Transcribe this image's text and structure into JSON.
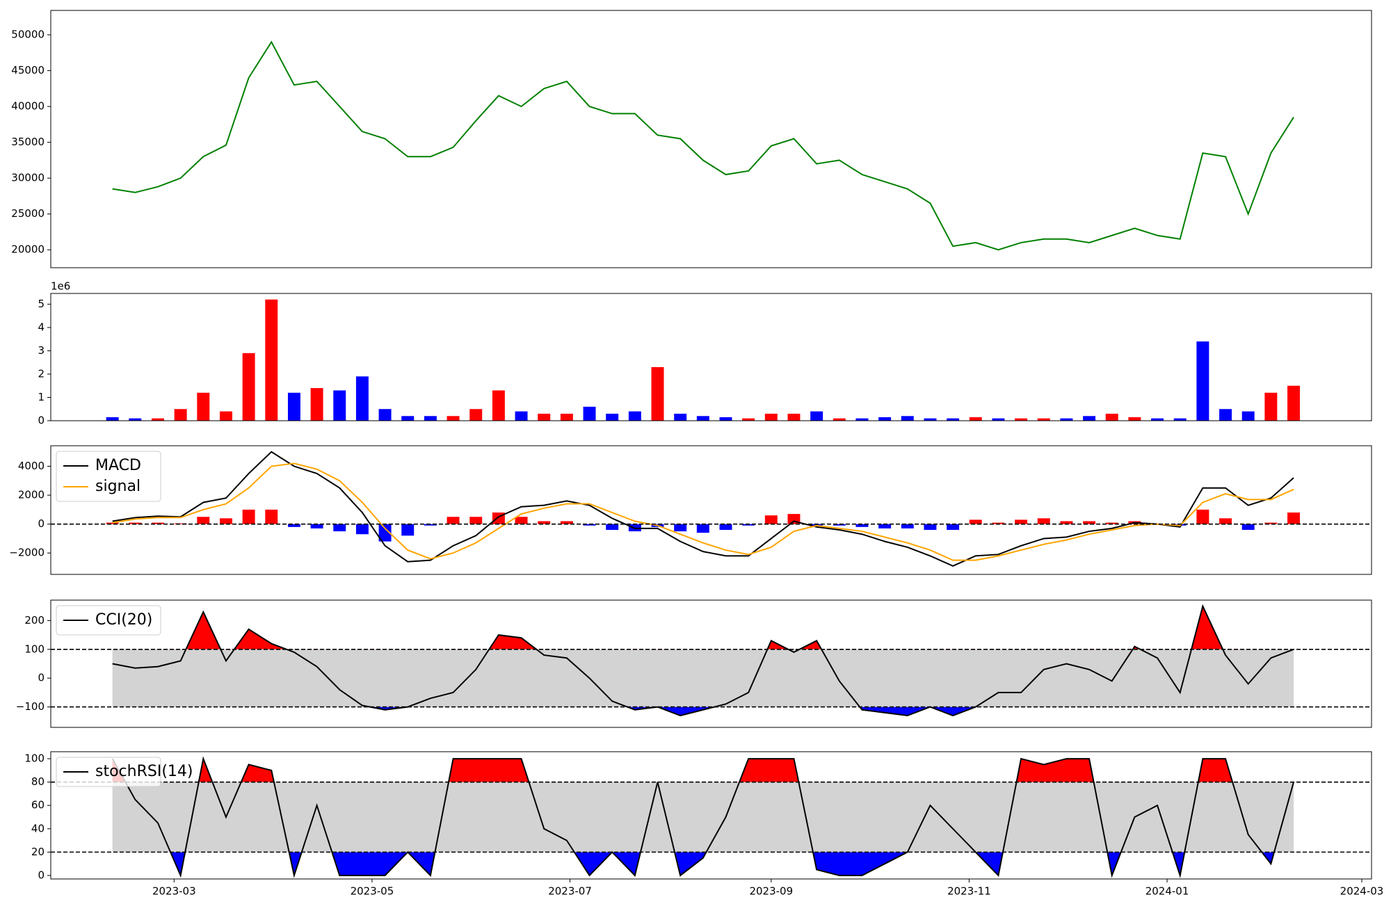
{
  "chart_data": [
    {
      "type": "line",
      "legend": false,
      "x": [
        "2023-02-10",
        "2023-02-17",
        "2023-02-24",
        "2023-03-03",
        "2023-03-10",
        "2023-03-17",
        "2023-03-24",
        "2023-03-31",
        "2023-04-07",
        "2023-04-14",
        "2023-04-21",
        "2023-04-28",
        "2023-05-05",
        "2023-05-12",
        "2023-05-19",
        "2023-05-26",
        "2023-06-02",
        "2023-06-09",
        "2023-06-16",
        "2023-06-23",
        "2023-06-30",
        "2023-07-07",
        "2023-07-14",
        "2023-07-21",
        "2023-07-28",
        "2023-08-04",
        "2023-08-11",
        "2023-08-18",
        "2023-08-25",
        "2023-09-01",
        "2023-09-08",
        "2023-09-15",
        "2023-09-22",
        "2023-09-29",
        "2023-10-06",
        "2023-10-13",
        "2023-10-20",
        "2023-10-27",
        "2023-11-03",
        "2023-11-10",
        "2023-11-17",
        "2023-11-24",
        "2023-12-01",
        "2023-12-08",
        "2023-12-15",
        "2023-12-22",
        "2023-12-29",
        "2024-01-05",
        "2024-01-12",
        "2024-01-19",
        "2024-01-26",
        "2024-02-02",
        "2024-02-09"
      ],
      "series": [
        {
          "color": "#008000",
          "values": [
            28500,
            28000,
            28800,
            30000,
            33000,
            34600,
            44000,
            49000,
            43000,
            43500,
            40000,
            36500,
            35500,
            33000,
            33000,
            34300,
            38000,
            41500,
            40000,
            42500,
            43500,
            40000,
            39000,
            39000,
            36000,
            35500,
            32500,
            30500,
            31000,
            34500,
            35500,
            32000,
            32500,
            30500,
            29500,
            28500,
            26500,
            20500,
            21000,
            20000,
            21000,
            21500,
            21500,
            21000,
            22000,
            23000,
            22000,
            21500,
            33500,
            33000,
            25000,
            33500,
            38500
          ]
        }
      ],
      "xlim": [
        "2023-01-22",
        "2024-03-04"
      ],
      "ylim": [
        17500,
        53400
      ],
      "yticks": [
        20000,
        25000,
        30000,
        35000,
        40000,
        45000,
        50000
      ]
    },
    {
      "type": "bar",
      "offset_label": "1e6",
      "x": [
        "2023-02-10",
        "2023-02-17",
        "2023-02-24",
        "2023-03-03",
        "2023-03-10",
        "2023-03-17",
        "2023-03-24",
        "2023-03-31",
        "2023-04-07",
        "2023-04-14",
        "2023-04-21",
        "2023-04-28",
        "2023-05-05",
        "2023-05-12",
        "2023-05-19",
        "2023-05-26",
        "2023-06-02",
        "2023-06-09",
        "2023-06-16",
        "2023-06-23",
        "2023-06-30",
        "2023-07-07",
        "2023-07-14",
        "2023-07-21",
        "2023-07-28",
        "2023-08-04",
        "2023-08-11",
        "2023-08-18",
        "2023-08-25",
        "2023-09-01",
        "2023-09-08",
        "2023-09-15",
        "2023-09-22",
        "2023-09-29",
        "2023-10-06",
        "2023-10-13",
        "2023-10-20",
        "2023-10-27",
        "2023-11-03",
        "2023-11-10",
        "2023-11-17",
        "2023-11-24",
        "2023-12-01",
        "2023-12-08",
        "2023-12-15",
        "2023-12-22",
        "2023-12-29",
        "2024-01-05",
        "2024-01-12",
        "2024-01-19",
        "2024-01-26",
        "2024-02-02",
        "2024-02-09"
      ],
      "values": [
        0.15,
        0.1,
        0.1,
        0.5,
        1.2,
        0.4,
        2.9,
        5.2,
        1.2,
        1.4,
        1.3,
        1.9,
        0.5,
        0.2,
        0.2,
        0.2,
        0.5,
        1.3,
        0.4,
        0.3,
        0.3,
        0.6,
        0.3,
        0.4,
        2.3,
        0.3,
        0.2,
        0.15,
        0.1,
        0.3,
        0.3,
        0.4,
        0.1,
        0.1,
        0.15,
        0.2,
        0.1,
        0.1,
        0.15,
        0.1,
        0.1,
        0.1,
        0.1,
        0.2,
        0.3,
        0.15,
        0.1,
        0.1,
        3.4,
        0.5,
        0.4,
        1.2,
        1.5
      ],
      "colors": [
        "#0000ff",
        "#0000ff",
        "#ff0000",
        "#ff0000",
        "#ff0000",
        "#ff0000",
        "#ff0000",
        "#ff0000",
        "#0000ff",
        "#ff0000",
        "#0000ff",
        "#0000ff",
        "#0000ff",
        "#0000ff",
        "#0000ff",
        "#ff0000",
        "#ff0000",
        "#ff0000",
        "#0000ff",
        "#ff0000",
        "#ff0000",
        "#0000ff",
        "#0000ff",
        "#0000ff",
        "#ff0000",
        "#0000ff",
        "#0000ff",
        "#0000ff",
        "#ff0000",
        "#ff0000",
        "#ff0000",
        "#0000ff",
        "#ff0000",
        "#0000ff",
        "#0000ff",
        "#0000ff",
        "#0000ff",
        "#0000ff",
        "#ff0000",
        "#0000ff",
        "#ff0000",
        "#ff0000",
        "#0000ff",
        "#0000ff",
        "#ff0000",
        "#ff0000",
        "#0000ff",
        "#0000ff",
        "#0000ff",
        "#0000ff",
        "#0000ff",
        "#ff0000",
        "#ff0000"
      ],
      "xlim": [
        "2023-01-22",
        "2024-03-04"
      ],
      "ylim": [
        0,
        5.46
      ],
      "yticks": [
        0,
        1,
        2,
        3,
        4,
        5
      ]
    },
    {
      "type": "macd",
      "legend": "upper left",
      "zero_line": 0,
      "x": [
        "2023-02-10",
        "2023-02-17",
        "2023-02-24",
        "2023-03-03",
        "2023-03-10",
        "2023-03-17",
        "2023-03-24",
        "2023-03-31",
        "2023-04-07",
        "2023-04-14",
        "2023-04-21",
        "2023-04-28",
        "2023-05-05",
        "2023-05-12",
        "2023-05-19",
        "2023-05-26",
        "2023-06-02",
        "2023-06-09",
        "2023-06-16",
        "2023-06-23",
        "2023-06-30",
        "2023-07-07",
        "2023-07-14",
        "2023-07-21",
        "2023-07-28",
        "2023-08-04",
        "2023-08-11",
        "2023-08-18",
        "2023-08-25",
        "2023-09-01",
        "2023-09-08",
        "2023-09-15",
        "2023-09-22",
        "2023-09-29",
        "2023-10-06",
        "2023-10-13",
        "2023-10-20",
        "2023-10-27",
        "2023-11-03",
        "2023-11-10",
        "2023-11-17",
        "2023-11-24",
        "2023-12-01",
        "2023-12-08",
        "2023-12-15",
        "2023-12-22",
        "2023-12-29",
        "2024-01-05",
        "2024-01-12",
        "2024-01-19",
        "2024-01-26",
        "2024-02-02",
        "2024-02-09"
      ],
      "series": [
        {
          "name": "MACD",
          "color": "#000000",
          "values": [
            200,
            450,
            550,
            500,
            1500,
            1800,
            3500,
            5000,
            4000,
            3500,
            2500,
            800,
            -1500,
            -2600,
            -2500,
            -1500,
            -800,
            500,
            1200,
            1300,
            1600,
            1300,
            400,
            -300,
            -300,
            -1200,
            -1900,
            -2200,
            -2200,
            -1000,
            200,
            -200,
            -400,
            -700,
            -1200,
            -1600,
            -2200,
            -2900,
            -2200,
            -2100,
            -1500,
            -1000,
            -900,
            -500,
            -300,
            100,
            0,
            -200,
            2500,
            2500,
            1300,
            1800,
            3200
          ]
        },
        {
          "name": "signal",
          "color": "#ffa500",
          "values": [
            100,
            350,
            450,
            450,
            1000,
            1400,
            2500,
            4000,
            4200,
            3800,
            3000,
            1500,
            -300,
            -1800,
            -2400,
            -2000,
            -1300,
            -300,
            700,
            1100,
            1400,
            1400,
            800,
            200,
            -100,
            -700,
            -1300,
            -1800,
            -2100,
            -1600,
            -500,
            -100,
            -300,
            -500,
            -900,
            -1300,
            -1800,
            -2500,
            -2500,
            -2200,
            -1800,
            -1400,
            -1100,
            -700,
            -400,
            -100,
            0,
            -100,
            1500,
            2100,
            1700,
            1700,
            2400
          ]
        }
      ],
      "histogram": [
        100,
        100,
        100,
        50,
        500,
        400,
        1000,
        1000,
        -200,
        -300,
        -500,
        -700,
        -1200,
        -800,
        -100,
        500,
        500,
        800,
        500,
        200,
        200,
        -100,
        -400,
        -500,
        -200,
        -500,
        -600,
        -400,
        -100,
        600,
        700,
        -100,
        -100,
        -200,
        -300,
        -300,
        -400,
        -400,
        300,
        100,
        300,
        400,
        200,
        200,
        100,
        200,
        0,
        -100,
        1000,
        400,
        -400,
        100,
        800
      ],
      "positive_color": "#ff0000",
      "negative_color": "#0000ff",
      "xlim": [
        "2023-01-22",
        "2024-03-04"
      ],
      "ylim": [
        -3480,
        5420
      ],
      "yticks": [
        {
          "value": -2000,
          "label": "−2000"
        },
        0,
        2000,
        4000
      ]
    },
    {
      "type": "oscillator",
      "legend": "upper left",
      "thresholds": [
        -100,
        100
      ],
      "above_color": "#ff0000",
      "below_color": "#0000ff",
      "band_color": "#d3d3d3",
      "x": [
        "2023-02-10",
        "2023-02-17",
        "2023-02-24",
        "2023-03-03",
        "2023-03-10",
        "2023-03-17",
        "2023-03-24",
        "2023-03-31",
        "2023-04-07",
        "2023-04-14",
        "2023-04-21",
        "2023-04-28",
        "2023-05-05",
        "2023-05-12",
        "2023-05-19",
        "2023-05-26",
        "2023-06-02",
        "2023-06-09",
        "2023-06-16",
        "2023-06-23",
        "2023-06-30",
        "2023-07-07",
        "2023-07-14",
        "2023-07-21",
        "2023-07-28",
        "2023-08-04",
        "2023-08-11",
        "2023-08-18",
        "2023-08-25",
        "2023-09-01",
        "2023-09-08",
        "2023-09-15",
        "2023-09-22",
        "2023-09-29",
        "2023-10-06",
        "2023-10-13",
        "2023-10-20",
        "2023-10-27",
        "2023-11-03",
        "2023-11-10",
        "2023-11-17",
        "2023-11-24",
        "2023-12-01",
        "2023-12-08",
        "2023-12-15",
        "2023-12-22",
        "2023-12-29",
        "2024-01-05",
        "2024-01-12",
        "2024-01-19",
        "2024-01-26",
        "2024-02-02",
        "2024-02-09"
      ],
      "series": [
        {
          "name": "CCI(20)",
          "color": "#000000",
          "values": [
            50,
            35,
            40,
            60,
            230,
            60,
            170,
            120,
            90,
            40,
            -40,
            -95,
            -110,
            -100,
            -70,
            -50,
            30,
            150,
            140,
            80,
            70,
            0,
            -80,
            -110,
            -100,
            -130,
            -110,
            -90,
            -50,
            130,
            90,
            130,
            -10,
            -110,
            -120,
            -130,
            -100,
            -130,
            -100,
            -50,
            -50,
            30,
            50,
            30,
            -10,
            110,
            70,
            -50,
            250,
            80,
            -20,
            70,
            100
          ]
        }
      ],
      "xlim": [
        "2023-01-22",
        "2024-03-04"
      ],
      "ylim": [
        -171,
        271
      ],
      "yticks": [
        {
          "value": -100,
          "label": "−100"
        },
        0,
        100,
        200
      ]
    },
    {
      "type": "oscillator",
      "legend": "upper left",
      "thresholds": [
        20,
        80
      ],
      "above_color": "#ff0000",
      "below_color": "#0000ff",
      "band_color": "#d3d3d3",
      "x": [
        "2023-02-10",
        "2023-02-17",
        "2023-02-24",
        "2023-03-03",
        "2023-03-10",
        "2023-03-17",
        "2023-03-24",
        "2023-03-31",
        "2023-04-07",
        "2023-04-14",
        "2023-04-21",
        "2023-04-28",
        "2023-05-05",
        "2023-05-12",
        "2023-05-19",
        "2023-05-26",
        "2023-06-02",
        "2023-06-09",
        "2023-06-16",
        "2023-06-23",
        "2023-06-30",
        "2023-07-07",
        "2023-07-14",
        "2023-07-21",
        "2023-07-28",
        "2023-08-04",
        "2023-08-11",
        "2023-08-18",
        "2023-08-25",
        "2023-09-01",
        "2023-09-08",
        "2023-09-15",
        "2023-09-22",
        "2023-09-29",
        "2023-10-06",
        "2023-10-13",
        "2023-10-20",
        "2023-10-27",
        "2023-11-03",
        "2023-11-10",
        "2023-11-17",
        "2023-11-24",
        "2023-12-01",
        "2023-12-08",
        "2023-12-15",
        "2023-12-22",
        "2023-12-29",
        "2024-01-05",
        "2024-01-12",
        "2024-01-19",
        "2024-01-26",
        "2024-02-02",
        "2024-02-09"
      ],
      "series": [
        {
          "name": "stochRSI(14)",
          "color": "#000000",
          "values": [
            100,
            65,
            45,
            0,
            100,
            50,
            95,
            90,
            0,
            60,
            0,
            0,
            0,
            20,
            0,
            100,
            100,
            100,
            100,
            40,
            30,
            0,
            20,
            0,
            80,
            0,
            15,
            50,
            100,
            100,
            100,
            5,
            0,
            0,
            10,
            20,
            60,
            40,
            20,
            0,
            100,
            95,
            100,
            100,
            0,
            50,
            60,
            0,
            100,
            100,
            35,
            10,
            80
          ]
        }
      ],
      "xlim": [
        "2023-01-22",
        "2024-03-04"
      ],
      "ylim": [
        -3,
        106
      ],
      "yticks": [
        0,
        20,
        40,
        60,
        80,
        100
      ],
      "xticks": [
        {
          "value": "2023-03-01",
          "label": "2023-03"
        },
        {
          "value": "2023-05-01",
          "label": "2023-05"
        },
        {
          "value": "2023-07-01",
          "label": "2023-07"
        },
        {
          "value": "2023-09-01",
          "label": "2023-09"
        },
        {
          "value": "2023-11-01",
          "label": "2023-11"
        },
        {
          "value": "2024-01-01",
          "label": "2024-01"
        },
        {
          "value": "2024-03-01",
          "label": "2024-03"
        }
      ]
    }
  ]
}
